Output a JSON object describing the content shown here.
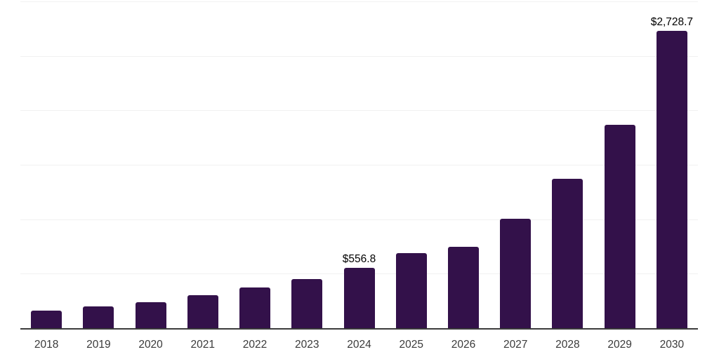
{
  "chart_data": {
    "type": "bar",
    "title": "",
    "xlabel": "",
    "ylabel": "",
    "categories": [
      "2018",
      "2019",
      "2020",
      "2021",
      "2022",
      "2023",
      "2024",
      "2025",
      "2026",
      "2027",
      "2028",
      "2029",
      "2030"
    ],
    "values": [
      159,
      202,
      240,
      302,
      372,
      451,
      556.8,
      690,
      746,
      1005,
      1373,
      1870,
      2728.7
    ],
    "annotations": [
      {
        "category": "2024",
        "text": "$556.8"
      },
      {
        "category": "2030",
        "text": "$2,728.7"
      }
    ],
    "ylim": [
      0,
      3000
    ],
    "gridline_step": 500,
    "grid": true,
    "legend_position": "none",
    "y_tick_labels_visible": false,
    "colors": {
      "bar": "#33114A",
      "gridline": "#f1f1f1",
      "axis_line": "#3b3b3b",
      "tick_label": "#3a3a3a",
      "annotation": "#000000",
      "background": "#ffffff"
    }
  }
}
